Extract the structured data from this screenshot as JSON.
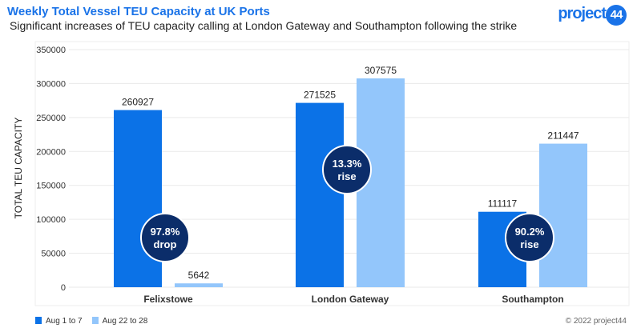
{
  "header": {
    "title": "Weekly Total Vessel TEU Capacity at UK Ports",
    "subtitle": "Significant increases of TEU capacity calling at London Gateway and Southampton following the strike",
    "logo": "project44"
  },
  "footer": {
    "copyright": "© 2022 project44"
  },
  "colors": {
    "series1": "#0b72e7",
    "series2": "#93c6fb",
    "badge": "#0b2d6a"
  },
  "chart_data": {
    "type": "bar",
    "title": "Weekly Total Vessel TEU Capacity at UK Ports",
    "ylabel": "TOTAL TEU CAPACITY",
    "xlabel": "",
    "ylim": [
      0,
      350000
    ],
    "yticks": [
      0,
      50000,
      100000,
      150000,
      200000,
      250000,
      300000,
      350000
    ],
    "categories": [
      "Felixstowe",
      "London Gateway",
      "Southampton"
    ],
    "series": [
      {
        "name": "Aug 1 to 7",
        "values": [
          260927,
          271525,
          111117
        ]
      },
      {
        "name": "Aug 22 to 28",
        "values": [
          5642,
          307575,
          211447
        ]
      }
    ],
    "annotations": [
      {
        "category": "Felixstowe",
        "line1": "97.8%",
        "line2": "drop"
      },
      {
        "category": "London Gateway",
        "line1": "13.3%",
        "line2": "rise"
      },
      {
        "category": "Southampton",
        "line1": "90.2%",
        "line2": "rise"
      }
    ],
    "legend": "bottom-left",
    "grid": true
  }
}
